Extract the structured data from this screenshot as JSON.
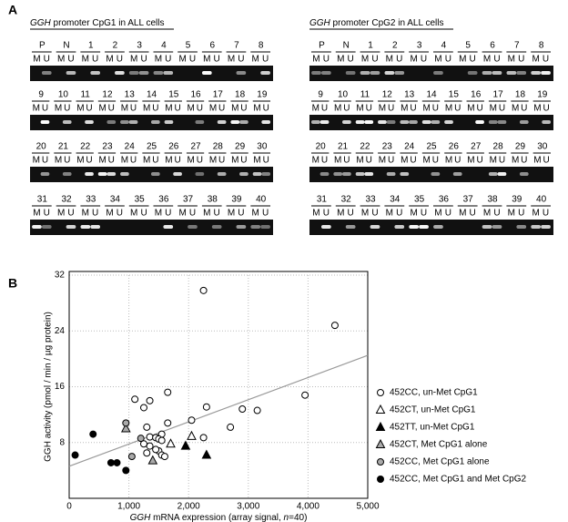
{
  "panel_a": {
    "label": "A",
    "lane_sub": [
      "M",
      "U"
    ],
    "panels": [
      {
        "title_gene": "GGH",
        "title_rest": " promoter CpG1 in ALL cells",
        "rows": [
          [
            "P",
            "N",
            "1",
            "2",
            "3",
            "4",
            "5",
            "6",
            "7",
            "8"
          ],
          [
            "9",
            "10",
            "11",
            "12",
            "13",
            "14",
            "15",
            "16",
            "17",
            "18",
            "19"
          ],
          [
            "20",
            "21",
            "22",
            "23",
            "24",
            "25",
            "26",
            "27",
            "28",
            "29",
            "30"
          ],
          [
            "31",
            "32",
            "33",
            "34",
            "35",
            "36",
            "37",
            "38",
            "39",
            "40"
          ]
        ]
      },
      {
        "title_gene": "GGH",
        "title_rest": " promoter CpG2 in ALL cells",
        "rows": [
          [
            "P",
            "N",
            "1",
            "2",
            "3",
            "4",
            "5",
            "6",
            "7",
            "8"
          ],
          [
            "9",
            "10",
            "11",
            "12",
            "13",
            "14",
            "15",
            "16",
            "17",
            "18",
            "19"
          ],
          [
            "20",
            "21",
            "22",
            "23",
            "24",
            "25",
            "26",
            "27",
            "28",
            "29",
            "30"
          ],
          [
            "31",
            "32",
            "33",
            "34",
            "35",
            "36",
            "37",
            "38",
            "39",
            "40"
          ]
        ]
      }
    ]
  },
  "chart_data": {
    "type": "scatter",
    "panel_label": "B",
    "y_label": "GGH activity (pmol / min / µg protein)",
    "x_label_gene": "GGH",
    "x_label_mid": " mRNA expression (array signal, ",
    "x_label_n": "n",
    "x_label_end": "=40)",
    "xlim": [
      0,
      5000
    ],
    "ylim": [
      0,
      32
    ],
    "xticks": [
      0,
      {
        "value": 1000,
        "label": "1,000"
      },
      {
        "value": 2000,
        "label": "2,000"
      },
      {
        "value": 3000,
        "label": "3,000"
      },
      {
        "value": 4000,
        "label": "4,000"
      },
      {
        "value": 5000,
        "label": "5,000"
      }
    ],
    "yticks": [
      8,
      16,
      24,
      32
    ],
    "grid": true,
    "legend": "right",
    "trendline": {
      "color": "#999999",
      "x": [
        0,
        5000
      ],
      "y": [
        4.6,
        20.5
      ]
    },
    "series": [
      {
        "name": "452CC, un-Met CpG1",
        "marker": "circle",
        "color": "#ffffff",
        "x": [
          4450,
          2250,
          3950,
          1650,
          1100,
          1350,
          1250,
          2300,
          2900,
          3150,
          2050,
          1650,
          2700,
          1300,
          1550,
          1350,
          1450,
          2250,
          1500,
          1550,
          1350,
          1500,
          1550,
          1450,
          1600,
          1300,
          1250
        ],
        "values": [
          24.8,
          29.8,
          14.8,
          15.2,
          14.2,
          14.0,
          13.0,
          13.1,
          12.8,
          12.6,
          11.2,
          10.8,
          10.2,
          10.2,
          9.2,
          8.8,
          8.7,
          8.7,
          8.5,
          8.3,
          7.5,
          6.8,
          6.2,
          7.0,
          6.0,
          6.5,
          7.8
        ]
      },
      {
        "name": "452CT, un-Met CpG1",
        "marker": "triangle",
        "color": "#ffffff",
        "x": [
          1700,
          2050
        ],
        "values": [
          7.8,
          8.9
        ]
      },
      {
        "name": "452TT, un-Met CpG1",
        "marker": "triangle",
        "color": "#000000",
        "x": [
          1950,
          2300
        ],
        "values": [
          7.5,
          6.2
        ]
      },
      {
        "name": "452CT, Met CpG1 alone",
        "marker": "triangle",
        "color": "#aaaaaa",
        "x": [
          950,
          1400
        ],
        "values": [
          10.0,
          5.4
        ]
      },
      {
        "name": "452CC, Met CpG1 alone",
        "marker": "circle",
        "color": "#aaaaaa",
        "x": [
          950,
          1200,
          1050
        ],
        "values": [
          10.8,
          8.6,
          6.0
        ]
      },
      {
        "name": "452CC, Met CpG1 and Met CpG2",
        "marker": "circle",
        "color": "#000000",
        "x": [
          400,
          100,
          700,
          800,
          950
        ],
        "values": [
          9.2,
          6.2,
          5.1,
          5.1,
          4.0
        ]
      }
    ]
  }
}
